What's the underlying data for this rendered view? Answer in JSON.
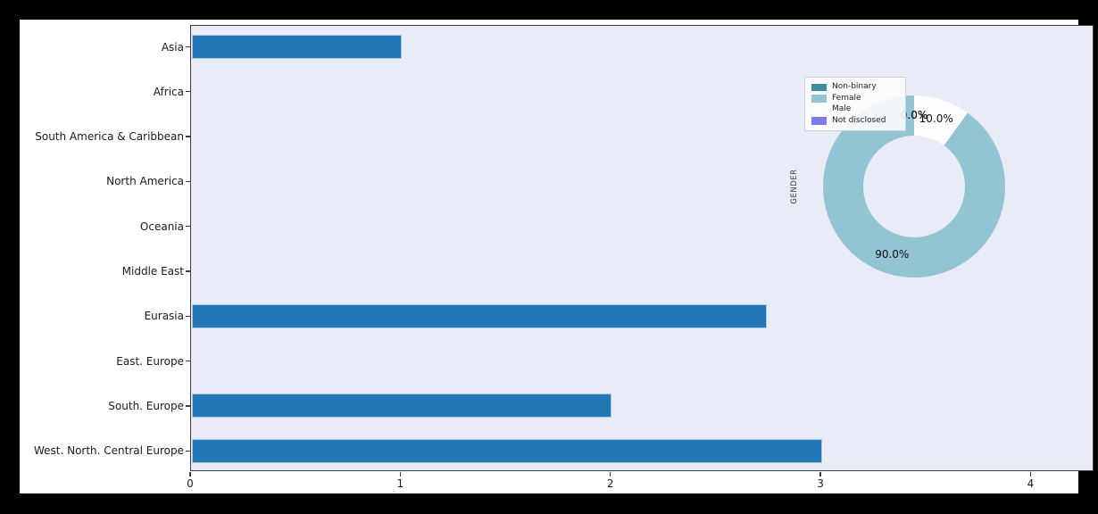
{
  "colors": {
    "frame_background": "#000000",
    "figure_background": "#ffffff",
    "plot_background": "#e8ecf7",
    "bar_fill": "#2277b4",
    "bar_edge": "#abc9e4",
    "spine": "#3d3d3d",
    "tick_text": "#1a1a1a"
  },
  "chart_data": [
    {
      "type": "bar",
      "orientation": "horizontal",
      "title": "",
      "xlabel": "",
      "ylabel": "",
      "categories": [
        "Asia",
        "Africa",
        "South America & Caribbean",
        "North America",
        "Oceania",
        "Middle East",
        "Eurasia",
        "East. Europe",
        "South. Europe",
        "West. North. Central Europe"
      ],
      "values": [
        1.0,
        0.0,
        0.0,
        0.0,
        0.0,
        0.0,
        2.74,
        0.0,
        2.0,
        3.0
      ],
      "x_ticks": [
        0,
        1,
        2,
        3,
        4
      ],
      "xlim": [
        0,
        4.3
      ],
      "grid": false,
      "legend_position": "none",
      "bar_color": "#2277b4",
      "plot_background": "#e8ecf7"
    },
    {
      "type": "pie",
      "donut": true,
      "title": "GENDER",
      "labels": [
        "Non-binary",
        "Female",
        "Male",
        "Not disclosed"
      ],
      "values": [
        0.0,
        90.0,
        10.0,
        0.0
      ],
      "colors": [
        "#3e8da6",
        "#93c4d4",
        "#fdfdfe",
        "#7d7bee"
      ],
      "pct_labels": [
        "0.0%",
        "90.0%",
        "10.0%",
        "0.0%"
      ],
      "start_angle": 90,
      "direction": "counterclockwise",
      "legend_position": "upper-left"
    }
  ]
}
